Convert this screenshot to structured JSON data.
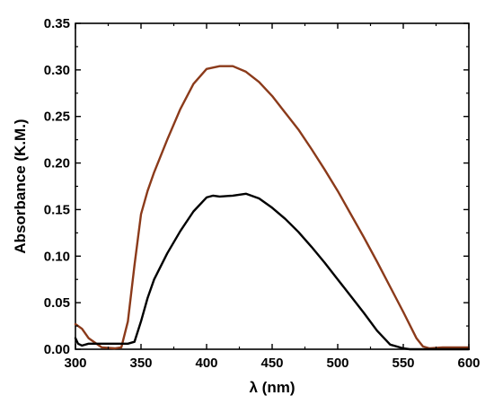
{
  "chart_data": {
    "type": "line",
    "title": "",
    "xlabel": "λ (nm)",
    "ylabel": "Absorbance (K.M.)",
    "xlim": [
      300,
      600
    ],
    "ylim": [
      0.0,
      0.35
    ],
    "x_ticks": [
      "300",
      "350",
      "400",
      "450",
      "500",
      "550",
      "600"
    ],
    "y_ticks": [
      "0.00",
      "0.05",
      "0.10",
      "0.15",
      "0.20",
      "0.25",
      "0.30",
      "0.35"
    ],
    "grid": false,
    "legend": "none",
    "series": [
      {
        "color": "#8B3A1A",
        "x": [
          300,
          305,
          310,
          320,
          330,
          335,
          340,
          345,
          350,
          355,
          360,
          370,
          380,
          390,
          400,
          410,
          420,
          430,
          440,
          450,
          460,
          470,
          480,
          490,
          500,
          510,
          520,
          530,
          540,
          550,
          560,
          565,
          570,
          580,
          590,
          600
        ],
        "y": [
          0.027,
          0.022,
          0.012,
          0.002,
          0.001,
          0.002,
          0.03,
          0.09,
          0.145,
          0.17,
          0.19,
          0.225,
          0.258,
          0.285,
          0.301,
          0.304,
          0.304,
          0.298,
          0.287,
          0.272,
          0.254,
          0.236,
          0.215,
          0.193,
          0.17,
          0.145,
          0.12,
          0.094,
          0.067,
          0.04,
          0.012,
          0.003,
          0.001,
          0.002,
          0.002,
          0.002
        ]
      },
      {
        "color": "#000000",
        "x": [
          300,
          302,
          305,
          310,
          320,
          330,
          340,
          345,
          350,
          355,
          360,
          370,
          380,
          390,
          400,
          405,
          410,
          420,
          430,
          440,
          450,
          460,
          470,
          480,
          490,
          500,
          510,
          520,
          530,
          540,
          550,
          555,
          560,
          570,
          580,
          600
        ],
        "y": [
          0.012,
          0.006,
          0.004,
          0.006,
          0.006,
          0.006,
          0.006,
          0.008,
          0.03,
          0.055,
          0.075,
          0.103,
          0.127,
          0.148,
          0.163,
          0.165,
          0.164,
          0.165,
          0.167,
          0.162,
          0.152,
          0.14,
          0.126,
          0.11,
          0.093,
          0.075,
          0.057,
          0.039,
          0.02,
          0.005,
          0.001,
          0.0,
          0.0,
          0.0,
          0.0,
          0.0
        ]
      }
    ]
  }
}
